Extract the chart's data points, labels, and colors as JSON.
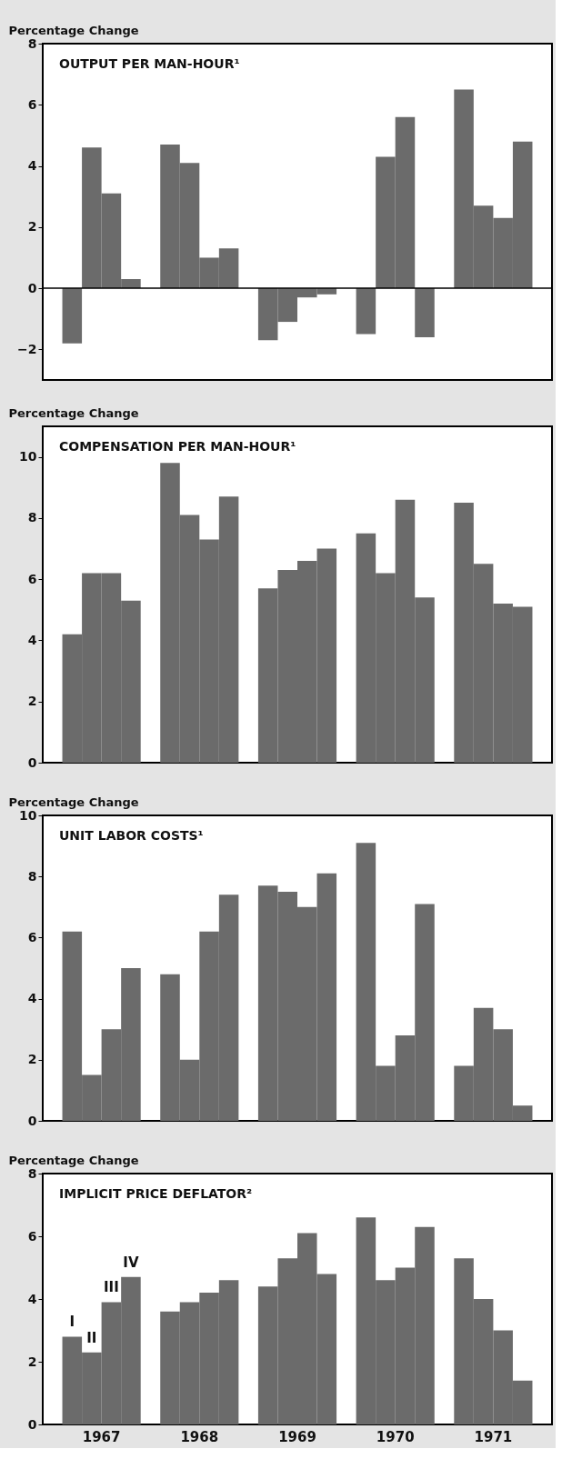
{
  "chart_data": [
    {
      "type": "bar",
      "title": "OUTPUT PER MAN-HOUR¹",
      "ylabel": "Percentage Change",
      "categories": [
        "1967",
        "1968",
        "1969",
        "1970",
        "1971"
      ],
      "series": [
        {
          "color": "#6b6b6b",
          "values": [
            -1.8,
            4.7,
            -1.7,
            -1.5,
            6.5
          ]
        },
        {
          "color": "#6b6b6b",
          "values": [
            4.6,
            4.1,
            -1.1,
            4.3,
            2.7
          ]
        },
        {
          "color": "#6b6b6b",
          "values": [
            3.1,
            1.0,
            -0.3,
            5.6,
            2.3
          ]
        },
        {
          "color": "#6b6b6b",
          "values": [
            0.3,
            1.3,
            -0.2,
            -1.6,
            4.8
          ]
        }
      ],
      "ylim": [
        -3,
        8
      ],
      "yticks": [
        -2,
        0,
        2,
        4,
        6,
        8
      ],
      "tick_labels": "y",
      "grid": false,
      "ref_lines": [
        {
          "axis": "y",
          "value": 0,
          "color": "#000000"
        }
      ]
    },
    {
      "type": "bar",
      "title": "COMPENSATION PER MAN-HOUR¹",
      "ylabel": "Percentage Change",
      "categories": [
        "1967",
        "1968",
        "1969",
        "1970",
        "1971"
      ],
      "series": [
        {
          "color": "#6b6b6b",
          "values": [
            4.2,
            9.8,
            5.7,
            7.5,
            8.5
          ]
        },
        {
          "color": "#6b6b6b",
          "values": [
            6.2,
            8.1,
            6.3,
            6.2,
            6.5
          ]
        },
        {
          "color": "#6b6b6b",
          "values": [
            6.2,
            7.3,
            6.6,
            8.6,
            5.2
          ]
        },
        {
          "color": "#6b6b6b",
          "values": [
            5.3,
            8.7,
            7.0,
            5.4,
            5.1
          ]
        }
      ],
      "ylim": [
        0,
        11
      ],
      "yticks": [
        0,
        2,
        4,
        6,
        8,
        10
      ],
      "tick_labels": "y",
      "grid": false
    },
    {
      "type": "bar",
      "title": "UNIT LABOR COSTS¹",
      "ylabel": "Percentage Change",
      "categories": [
        "1967",
        "1968",
        "1969",
        "1970",
        "1971"
      ],
      "series": [
        {
          "color": "#6b6b6b",
          "values": [
            6.2,
            4.8,
            7.7,
            9.1,
            1.8
          ]
        },
        {
          "color": "#6b6b6b",
          "values": [
            1.5,
            2.0,
            7.5,
            1.8,
            3.7
          ]
        },
        {
          "color": "#6b6b6b",
          "values": [
            3.0,
            6.2,
            7.0,
            2.8,
            3.0
          ]
        },
        {
          "color": "#6b6b6b",
          "values": [
            5.0,
            7.4,
            8.1,
            7.1,
            0.5
          ]
        }
      ],
      "ylim": [
        0,
        10
      ],
      "yticks": [
        0,
        2,
        4,
        6,
        8,
        10
      ],
      "tick_labels": "y",
      "grid": false
    },
    {
      "type": "bar",
      "title": "IMPLICIT PRICE DEFLATOR²",
      "ylabel": "Percentage Change",
      "categories": [
        "1967",
        "1968",
        "1969",
        "1970",
        "1971"
      ],
      "series": [
        {
          "name": "I",
          "color": "#6b6b6b",
          "values": [
            2.8,
            3.6,
            4.4,
            6.6,
            5.3
          ]
        },
        {
          "name": "II",
          "color": "#6b6b6b",
          "values": [
            2.3,
            3.9,
            5.3,
            4.6,
            4.0
          ]
        },
        {
          "name": "III",
          "color": "#6b6b6b",
          "values": [
            3.9,
            4.2,
            6.1,
            5.0,
            3.0
          ]
        },
        {
          "name": "IV",
          "color": "#6b6b6b",
          "values": [
            4.7,
            4.6,
            4.8,
            6.3,
            1.4
          ]
        }
      ],
      "ylim": [
        0,
        8
      ],
      "yticks": [
        0,
        2,
        4,
        6,
        8
      ],
      "grid": false
    }
  ]
}
